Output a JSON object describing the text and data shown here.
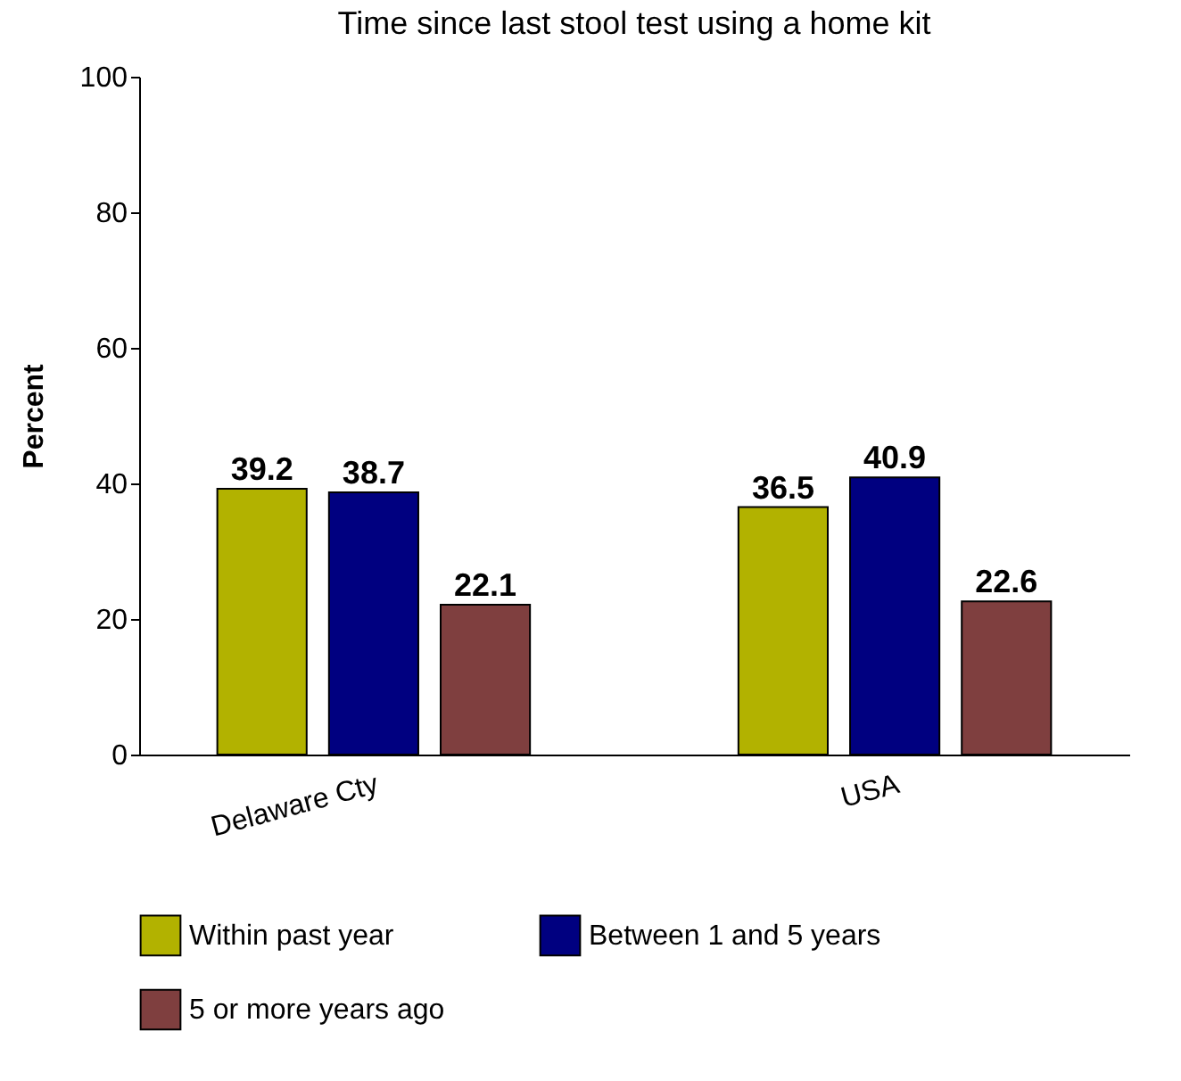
{
  "chart_data": {
    "type": "bar",
    "title": "Time since last stool test using a home kit",
    "ylabel": "Percent",
    "categories": [
      "Delaware Cty",
      "USA"
    ],
    "series": [
      {
        "name": "Within past year",
        "color": "#b2b200",
        "values": [
          39.2,
          36.5
        ]
      },
      {
        "name": "Between 1 and 5 years",
        "color": "#000080",
        "values": [
          38.7,
          40.9
        ]
      },
      {
        "name": "5 or more years ago",
        "color": "#7f3f3f",
        "values": [
          22.1,
          22.6
        ]
      }
    ],
    "ylim": [
      0,
      100
    ],
    "yticks": [
      0,
      20,
      40,
      60,
      80,
      100
    ],
    "grid": false,
    "legend": "bottom",
    "data_labels": true
  }
}
